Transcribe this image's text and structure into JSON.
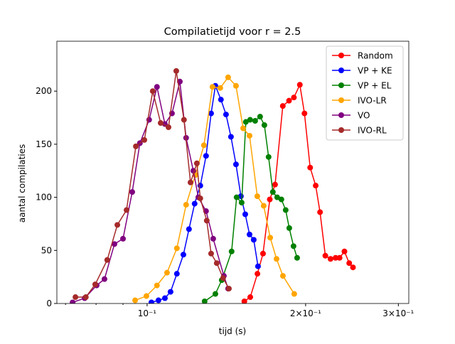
{
  "chart_data": {
    "type": "line",
    "title": "Compilatietijd voor r = 2.5",
    "xlabel": "tijd (s)",
    "ylabel": "aantal compilaties",
    "xscale": "log",
    "xlim": [
      0.0674,
      0.314
    ],
    "ylim": [
      0,
      247
    ],
    "xticks": [
      {
        "value": 0.1,
        "label": "10⁻¹"
      },
      {
        "value": 0.2,
        "label": "2×10⁻¹"
      },
      {
        "value": 0.3,
        "label": "3×10⁻¹"
      }
    ],
    "xminorticks": [
      0.07,
      0.08,
      0.09
    ],
    "yticks": [
      0,
      50,
      100,
      150,
      200
    ],
    "grid": false,
    "legend": "upper right",
    "series": [
      {
        "name": "Random",
        "color": "#ff0000",
        "x": [
          0.153,
          0.157,
          0.162,
          0.166,
          0.171,
          0.175,
          0.181,
          0.186,
          0.19,
          0.195,
          0.199,
          0.204,
          0.209,
          0.213,
          0.218,
          0.223,
          0.228,
          0.232,
          0.237,
          0.242,
          0.246
        ],
        "values": [
          2,
          6,
          28,
          47,
          98,
          112,
          186,
          191,
          194,
          206,
          179,
          128,
          111,
          86,
          45,
          42,
          43,
          43,
          49,
          38,
          34
        ]
      },
      {
        "name": "VP + KE",
        "color": "#0000ff",
        "x": [
          0.1019,
          0.1051,
          0.1081,
          0.1108,
          0.1139,
          0.1172,
          0.1201,
          0.1231,
          0.1262,
          0.1294,
          0.1323,
          0.1348,
          0.1381,
          0.1412,
          0.1443,
          0.1475,
          0.1507,
          0.1536,
          0.1565,
          0.1594,
          0.1624
        ],
        "values": [
          1,
          3,
          5,
          11,
          28,
          46,
          70,
          94,
          111,
          139,
          179,
          205,
          192,
          178,
          157,
          131,
          101,
          84,
          65,
          60,
          35
        ]
      },
      {
        "name": "VP + EL",
        "color": "#008000",
        "x": [
          0.1286,
          0.1348,
          0.1386,
          0.1447,
          0.1479,
          0.1512,
          0.154,
          0.1569,
          0.1604,
          0.1639,
          0.167,
          0.1701,
          0.1733,
          0.1766,
          0.1799,
          0.1833,
          0.1862,
          0.1897,
          0.1927
        ],
        "values": [
          2,
          9,
          22,
          49,
          100,
          95,
          171,
          173,
          172,
          176,
          168,
          138,
          105,
          100,
          98,
          88,
          71,
          54,
          43
        ]
      },
      {
        "name": "IVO-LR",
        "color": "#ffa500",
        "x": [
          0.0949,
          0.0997,
          0.1044,
          0.1091,
          0.1139,
          0.1186,
          0.1235,
          0.1282,
          0.1331,
          0.1377,
          0.1425,
          0.1475,
          0.1522,
          0.1565,
          0.1619,
          0.1665,
          0.1713,
          0.1761,
          0.1811,
          0.1903
        ],
        "values": [
          3,
          7,
          17,
          29,
          52,
          93,
          121,
          149,
          204,
          203,
          213,
          205,
          165,
          158,
          101,
          92,
          62,
          42,
          26,
          9
        ]
      },
      {
        "name": "VO",
        "color": "#800080",
        "x": [
          0.0722,
          0.0761,
          0.0802,
          0.083,
          0.0867,
          0.09,
          0.0937,
          0.0969,
          0.1009,
          0.1044,
          0.1081,
          0.1115,
          0.1154,
          0.1186,
          0.1224,
          0.1251,
          0.1294,
          0.1335,
          0.1399,
          0.1425
        ],
        "values": [
          1,
          5,
          17,
          23,
          56,
          61,
          105,
          151,
          173,
          204,
          169,
          179,
          209,
          156,
          125,
          100,
          87,
          61,
          26,
          14
        ]
      },
      {
        "name": "IVO-RL",
        "color": "#a52a2a",
        "x": [
          0.0731,
          0.0765,
          0.0797,
          0.084,
          0.0878,
          0.0914,
          0.0952,
          0.0988,
          0.1025,
          0.1061,
          0.1098,
          0.1136,
          0.1175,
          0.1209,
          0.1243,
          0.1262,
          0.1298,
          0.1323,
          0.1356,
          0.1394,
          0.143
        ],
        "values": [
          6,
          6,
          18,
          41,
          74,
          88,
          148,
          154,
          200,
          170,
          166,
          219,
          173,
          114,
          132,
          99,
          78,
          47,
          38,
          24,
          14
        ]
      }
    ]
  }
}
